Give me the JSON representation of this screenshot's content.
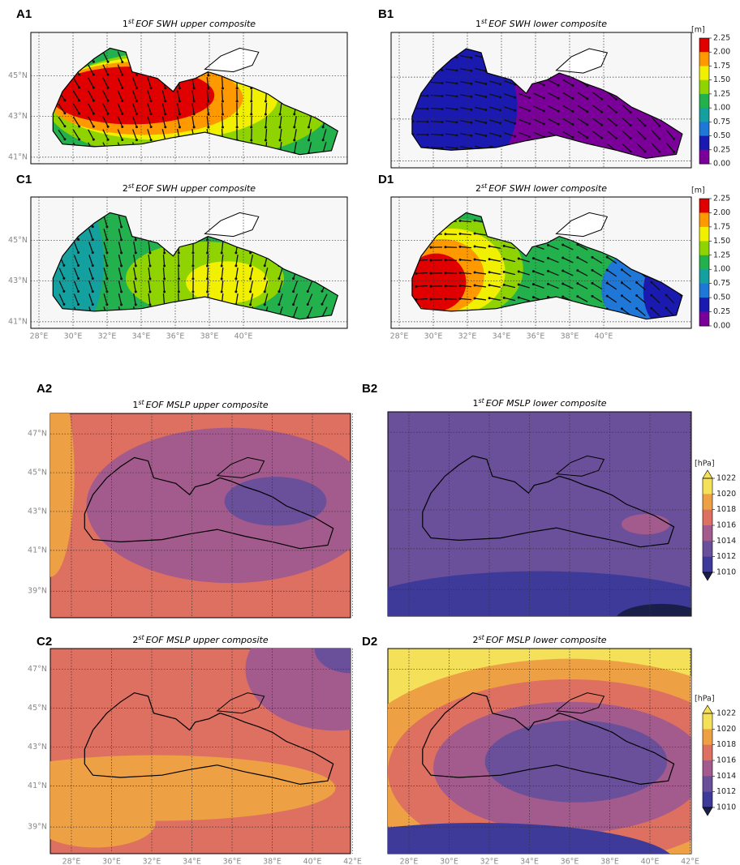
{
  "panels": [
    {
      "label": "A1",
      "title": {
        "number": "1",
        "sup": "st",
        "rest": "EOF SWH upper composite"
      },
      "lat_labels": [
        "45°N",
        "43°N",
        "41°N"
      ],
      "lon_labels": []
    },
    {
      "label": "B1",
      "title": {
        "number": "1",
        "sup": "st",
        "rest": "EOF SWH lower composite"
      },
      "lat_labels": [],
      "lon_labels": []
    },
    {
      "label": "C1",
      "title": {
        "number": "2",
        "sup": "st",
        "rest": "EOF SWH upper composite"
      },
      "lat_labels": [
        "45°N",
        "43°N",
        "41°N"
      ],
      "lon_labels": [
        "28°E",
        "30°E",
        "32°E",
        "34°E",
        "36°E",
        "38°E",
        "40°E"
      ]
    },
    {
      "label": "D1",
      "title": {
        "number": "2",
        "sup": "st",
        "rest": "EOF SWH lower composite"
      },
      "lat_labels": [],
      "lon_labels": [
        "28°E",
        "30°E",
        "32°E",
        "34°E",
        "36°E",
        "38°E",
        "40°E"
      ]
    },
    {
      "label": "A2",
      "title": {
        "number": "1",
        "sup": "st",
        "rest": "EOF MSLP upper composite"
      },
      "lat_labels": [
        "47°N",
        "45°N",
        "43°N",
        "41°N",
        "39°N"
      ],
      "lon_labels": []
    },
    {
      "label": "B2",
      "title": {
        "number": "1",
        "sup": "st",
        "rest": "EOF MSLP lower composite"
      },
      "lat_labels": [],
      "lon_labels": []
    },
    {
      "label": "C2",
      "title": {
        "number": "2",
        "sup": "st",
        "rest": "EOF MSLP upper composite"
      },
      "lat_labels": [
        "47°N",
        "45°N",
        "43°N",
        "41°N",
        "39°N"
      ],
      "lon_labels": [
        "28°E",
        "30°E",
        "32°E",
        "34°E",
        "36°E",
        "38°E",
        "40°E",
        "42°E"
      ]
    },
    {
      "label": "D2",
      "title": {
        "number": "2",
        "sup": "st",
        "rest": "EOF MSLP lower composite"
      },
      "lat_labels": [],
      "lon_labels": [
        "28°E",
        "30°E",
        "32°E",
        "34°E",
        "36°E",
        "38°E",
        "40°E",
        "42°E"
      ]
    }
  ],
  "colorbars": [
    {
      "unit": "[m]",
      "ticks": [
        "2.25",
        "2.00",
        "1.75",
        "1.50",
        "1.25",
        "1.00",
        "0.75",
        "0.50",
        "0.25",
        "0.00"
      ]
    },
    {
      "unit": "[m]",
      "ticks": [
        "2.25",
        "2.00",
        "1.75",
        "1.50",
        "1.25",
        "1.00",
        "0.75",
        "0.50",
        "0.25",
        "0.00"
      ]
    },
    {
      "unit": "[hPa]",
      "ticks": [
        "1022",
        "1020",
        "1018",
        "1016",
        "1014",
        "1012",
        "1010"
      ]
    },
    {
      "unit": "[hPa]",
      "ticks": [
        "1022",
        "1020",
        "1018",
        "1016",
        "1014",
        "1012",
        "1010"
      ]
    }
  ]
}
